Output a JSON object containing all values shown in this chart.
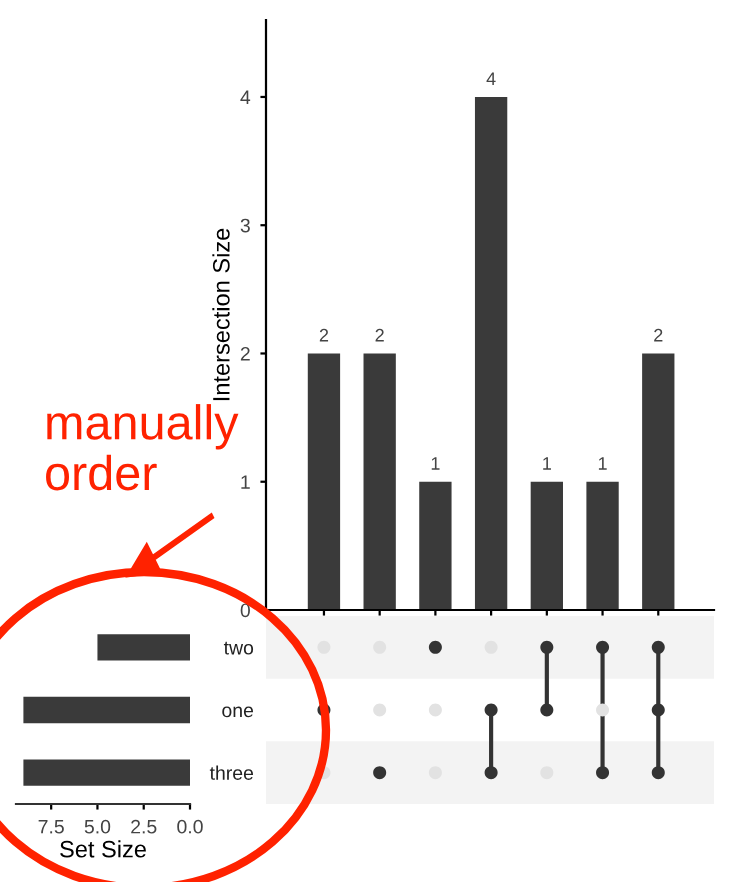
{
  "chart_data": [
    {
      "type": "bar",
      "categories": [
        null,
        null,
        null,
        null,
        null,
        null,
        null
      ],
      "values": [
        2,
        2,
        1,
        4,
        1,
        1,
        2
      ],
      "color": "#3a3a3a",
      "ylabel": "Intersection Size",
      "ylim": [
        0,
        4.6
      ],
      "yticks": [
        0,
        1,
        2,
        3,
        4
      ],
      "data_labels": true,
      "grid": false
    },
    {
      "type": "bar",
      "orientation": "horizontal",
      "categories": [
        "two",
        "one",
        "three"
      ],
      "values": [
        5,
        9,
        9
      ],
      "color": "#3a3a3a",
      "xlabel": "Set Size",
      "xlim": [
        9.4,
        0
      ],
      "xticks": [
        {
          "value": 7.5,
          "label": "7.5"
        },
        {
          "value": 5,
          "label": "5.0"
        },
        {
          "value": 2.5,
          "label": "2.5"
        },
        {
          "value": 0,
          "label": "0.0"
        }
      ],
      "grid": false,
      "annotations": [
        "manually\norder"
      ]
    }
  ]
}
